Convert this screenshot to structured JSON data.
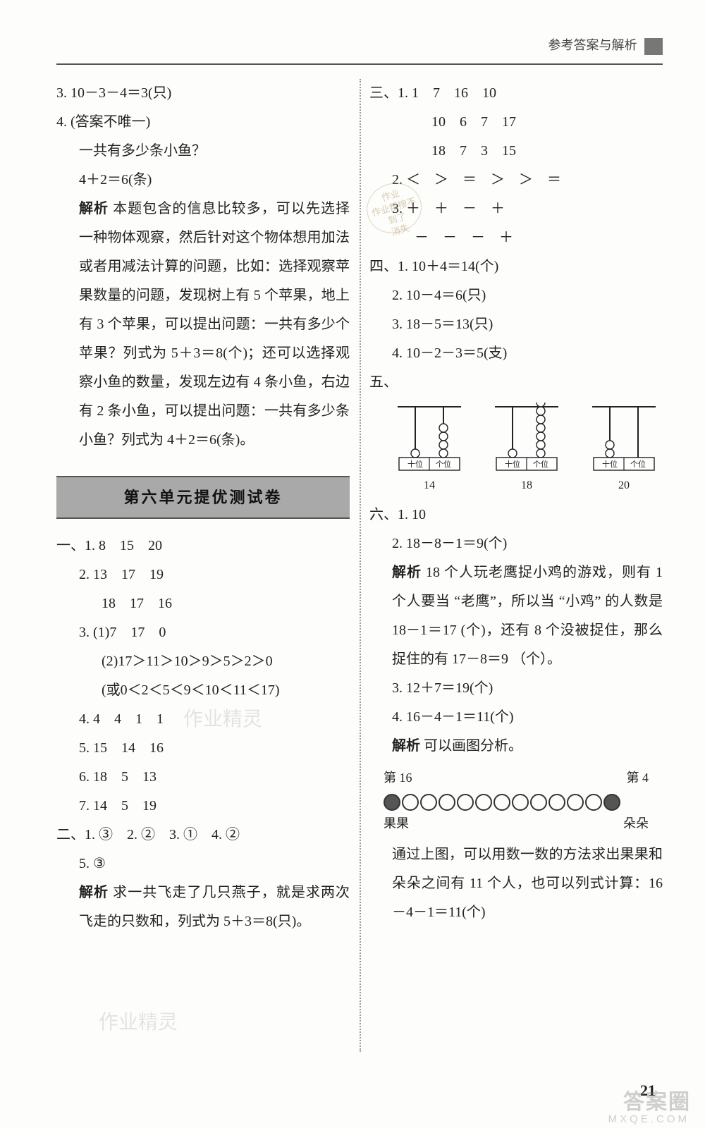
{
  "header": {
    "title": "参考答案与解析"
  },
  "left": {
    "l3": "3. 10－3－4＝3(只)",
    "l4": "4. (答案不唯一)",
    "l4a": "一共有多少条小鱼？",
    "l4b": "4＋2＝6(条)",
    "exp1": "解析",
    "exp1txt": " 本题包含的信息比较多，可以先选择一种物体观察，然后针对这个物体想用加法或者用减法计算的问题，比如：选择观察苹果数量的问题，发现树上有 5 个苹果，地上有 3 个苹果，可以提出问题：一共有多少个苹果？列式为 5＋3＝8(个)；还可以选择观察小鱼的数量，发现左边有 4 条小鱼，右边有 2 条小鱼，可以提出问题：一共有多少条小鱼？列式为 4＋2＝6(条)。",
    "section": "第六单元提优测试卷",
    "a1_1": "一、1. 8　15　20",
    "a1_2": "2. 13　17　19",
    "a1_2b": "18　17　16",
    "a1_3": "3. (1)7　17　0",
    "a1_3b": "(2)17＞11＞10＞9＞5＞2＞0",
    "a1_3c": "(或0＜2＜5＜9＜10＜11＜17)",
    "a1_4": "4. 4　4　1　1",
    "a1_5": "5. 15　14　16",
    "a1_6": "6. 18　5　13",
    "a1_7": "7. 14　5　19",
    "a2": "二、1. ③　2. ②　3. ①　4. ②",
    "a2b": "5. ③",
    "a2exp": "解析",
    "a2exptxt": " 求一共飞走了几只燕子，就是求两次飞走的只数和，列式为 5＋3＝8(只)。"
  },
  "right": {
    "r3_title": "三、1. 1　7　16　10",
    "r3_b": "10　6　7　17",
    "r3_c": "18　7　3　15",
    "r3_2": "2. ＜　＞　＝　＞　＞　＝",
    "r3_3a": "3. ＋　＋　－　＋",
    "r3_3b": "－　－　－　＋",
    "r4_1": "四、1. 10＋4＝14(个)",
    "r4_2": "2. 10－4＝6(只)",
    "r4_3": "3. 18－5＝13(只)",
    "r4_4": "4. 10－2－3＝5(支)",
    "r5": "五、",
    "abacus": [
      {
        "tens": 1,
        "ones": 4,
        "label": "14"
      },
      {
        "tens": 1,
        "ones": 8,
        "label": "18"
      },
      {
        "tens": 2,
        "ones": 0,
        "label": "20"
      }
    ],
    "r6_1": "六、1. 10",
    "r6_2": "2. 18－8－1＝9(个)",
    "r6_exp": "解析",
    "r6_exptxt": " 18 个人玩老鹰捉小鸡的游戏，则有 1 个人要当 “老鹰”，所以当 “小鸡” 的人数是 18－1＝17 (个)，还有 8 个没被捉住，那么捉住的有 17－8＝9 （个）。",
    "r6_3": "3. 12＋7＝19(个)",
    "r6_4": "4. 16－4－1＝11(个)",
    "r6_exp2": "解析",
    "r6_exp2txt": " 可以画图分析。",
    "circles": {
      "left_top": "第 16",
      "right_top": "第 4",
      "left_name": "果果",
      "right_name": "朵朵",
      "count_open": 11
    },
    "r6_end": "通过上图，可以用数一数的方法求出果果和朵朵之间有 11 个人，也可以列式计算：16－4－1＝11(个)",
    "stamp": "作业\n作业帮搜不到了\n消失"
  },
  "pagenum": "21",
  "wm_logo": "答案圈",
  "wm_url": "MXQE.COM",
  "faint_wm1": "作业精灵",
  "faint_wm2": "作业精灵",
  "colors": {
    "bg": "#fdfdfb",
    "text": "#222",
    "section_bg": "#a9a9a9",
    "rule": "#555",
    "wm": "rgba(120,120,120,.35)"
  }
}
